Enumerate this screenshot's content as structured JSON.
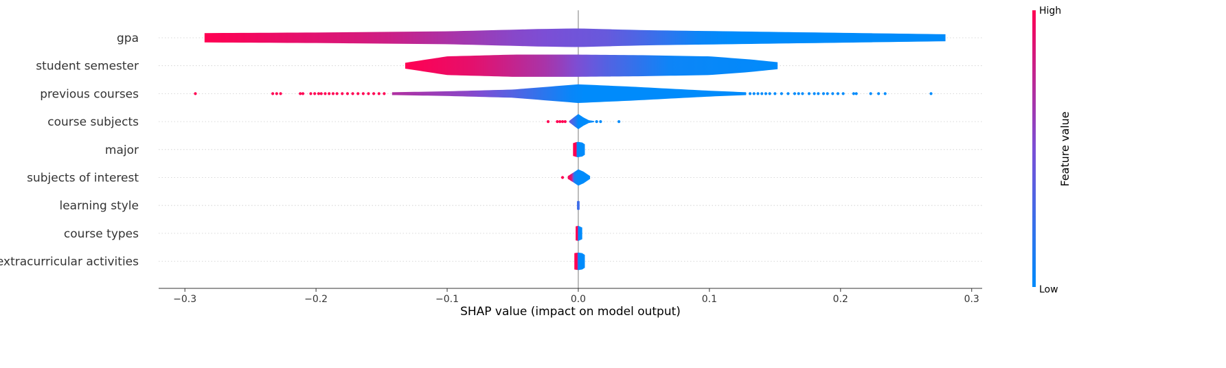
{
  "chart_data": {
    "type": "violin",
    "xlabel": "SHAP value (impact on model output)",
    "xlim": [
      -0.32,
      0.308
    ],
    "xticks": [
      -0.3,
      -0.2,
      -0.1,
      0.0,
      0.1,
      0.2,
      0.3
    ],
    "xtick_labels": [
      "−0.3",
      "−0.2",
      "−0.1",
      "0.0",
      "0.1",
      "0.2",
      "0.3"
    ],
    "colorbar": {
      "title": "Feature value",
      "high_label": "High",
      "low_label": "Low",
      "high_color": "#ff0052",
      "mid_color": "#7b4fd6",
      "low_color": "#008bfb"
    },
    "features": [
      {
        "name": "gpa",
        "min": -0.285,
        "max": 0.28,
        "width_profile": [
          [
            -0.285,
            0.4
          ],
          [
            -0.2,
            0.45
          ],
          [
            -0.1,
            0.55
          ],
          [
            -0.03,
            0.75
          ],
          [
            0.0,
            0.8
          ],
          [
            0.05,
            0.65
          ],
          [
            0.15,
            0.5
          ],
          [
            0.28,
            0.3
          ]
        ],
        "color_profile": [
          [
            -0.285,
            1.0
          ],
          [
            -0.15,
            0.82
          ],
          [
            -0.05,
            0.55
          ],
          [
            0.03,
            0.4
          ],
          [
            0.1,
            0.0
          ],
          [
            0.28,
            0.0
          ]
        ],
        "outliers": []
      },
      {
        "name": "student semester",
        "min": -0.132,
        "max": 0.152,
        "width_profile": [
          [
            -0.132,
            0.25
          ],
          [
            -0.1,
            0.8
          ],
          [
            -0.05,
            0.95
          ],
          [
            0.0,
            0.95
          ],
          [
            0.05,
            0.9
          ],
          [
            0.1,
            0.8
          ],
          [
            0.13,
            0.55
          ],
          [
            0.152,
            0.3
          ]
        ],
        "color_profile": [
          [
            -0.132,
            1.0
          ],
          [
            -0.08,
            0.9
          ],
          [
            -0.02,
            0.65
          ],
          [
            0.02,
            0.35
          ],
          [
            0.07,
            0.05
          ],
          [
            0.152,
            0.0
          ]
        ],
        "outliers": []
      },
      {
        "name": "previous courses",
        "min": -0.142,
        "max": 0.128,
        "width_profile": [
          [
            -0.142,
            0.12
          ],
          [
            -0.1,
            0.2
          ],
          [
            -0.05,
            0.35
          ],
          [
            0.0,
            0.8
          ],
          [
            0.04,
            0.6
          ],
          [
            0.1,
            0.25
          ],
          [
            0.128,
            0.12
          ]
        ],
        "color_profile": [
          [
            -0.142,
            0.7
          ],
          [
            -0.08,
            0.55
          ],
          [
            -0.03,
            0.2
          ],
          [
            0.0,
            0.0
          ],
          [
            0.128,
            0.0
          ]
        ],
        "outliers": [
          {
            "x": -0.292,
            "c": 1
          },
          {
            "x": -0.233,
            "c": 1
          },
          {
            "x": -0.23,
            "c": 1
          },
          {
            "x": -0.227,
            "c": 1
          },
          {
            "x": -0.212,
            "c": 1
          },
          {
            "x": -0.21,
            "c": 1
          },
          {
            "x": -0.204,
            "c": 1
          },
          {
            "x": -0.201,
            "c": 1
          },
          {
            "x": -0.198,
            "c": 1
          },
          {
            "x": -0.196,
            "c": 1
          },
          {
            "x": -0.193,
            "c": 1
          },
          {
            "x": -0.19,
            "c": 1
          },
          {
            "x": -0.187,
            "c": 1
          },
          {
            "x": -0.184,
            "c": 1
          },
          {
            "x": -0.18,
            "c": 1
          },
          {
            "x": -0.176,
            "c": 1
          },
          {
            "x": -0.172,
            "c": 1
          },
          {
            "x": -0.168,
            "c": 1
          },
          {
            "x": -0.164,
            "c": 1
          },
          {
            "x": -0.16,
            "c": 1
          },
          {
            "x": -0.156,
            "c": 1
          },
          {
            "x": -0.152,
            "c": 1
          },
          {
            "x": -0.148,
            "c": 1
          },
          {
            "x": 0.131,
            "c": 0
          },
          {
            "x": 0.134,
            "c": 0
          },
          {
            "x": 0.137,
            "c": 0
          },
          {
            "x": 0.14,
            "c": 0
          },
          {
            "x": 0.143,
            "c": 0
          },
          {
            "x": 0.146,
            "c": 0
          },
          {
            "x": 0.15,
            "c": 0
          },
          {
            "x": 0.155,
            "c": 0
          },
          {
            "x": 0.16,
            "c": 0
          },
          {
            "x": 0.165,
            "c": 0
          },
          {
            "x": 0.168,
            "c": 0
          },
          {
            "x": 0.171,
            "c": 0
          },
          {
            "x": 0.176,
            "c": 0
          },
          {
            "x": 0.18,
            "c": 0
          },
          {
            "x": 0.183,
            "c": 0
          },
          {
            "x": 0.187,
            "c": 0
          },
          {
            "x": 0.19,
            "c": 0
          },
          {
            "x": 0.194,
            "c": 0
          },
          {
            "x": 0.198,
            "c": 0
          },
          {
            "x": 0.202,
            "c": 0
          },
          {
            "x": 0.21,
            "c": 0
          },
          {
            "x": 0.212,
            "c": 0
          },
          {
            "x": 0.223,
            "c": 0
          },
          {
            "x": 0.229,
            "c": 0
          },
          {
            "x": 0.234,
            "c": 0
          },
          {
            "x": 0.269,
            "c": 0
          }
        ]
      },
      {
        "name": "course subjects",
        "min": -0.007,
        "max": 0.012,
        "width_profile": [
          [
            -0.007,
            0.05
          ],
          [
            -0.003,
            0.4
          ],
          [
            0.0,
            0.65
          ],
          [
            0.004,
            0.35
          ],
          [
            0.008,
            0.12
          ],
          [
            0.012,
            0.05
          ]
        ],
        "color_profile": [
          [
            -0.007,
            0.45
          ],
          [
            -0.002,
            0.15
          ],
          [
            0.0,
            0.0
          ],
          [
            0.012,
            0.0
          ]
        ],
        "outliers": [
          {
            "x": -0.023,
            "c": 1
          },
          {
            "x": -0.016,
            "c": 1
          },
          {
            "x": -0.014,
            "c": 1
          },
          {
            "x": -0.012,
            "c": 1
          },
          {
            "x": -0.01,
            "c": 1
          },
          {
            "x": 0.014,
            "c": 0
          },
          {
            "x": 0.017,
            "c": 0
          },
          {
            "x": 0.031,
            "c": 0
          }
        ]
      },
      {
        "name": "major",
        "min": -0.004,
        "max": 0.005,
        "width_profile": [
          [
            -0.004,
            0.55
          ],
          [
            -0.001,
            0.65
          ],
          [
            0.0,
            0.65
          ],
          [
            0.003,
            0.6
          ],
          [
            0.005,
            0.45
          ]
        ],
        "color_profile": [
          [
            -0.004,
            1.0
          ],
          [
            -0.0015,
            1.0
          ],
          [
            -0.001,
            0.0
          ],
          [
            0.005,
            0.0
          ]
        ],
        "outliers": []
      },
      {
        "name": "subjects of interest",
        "min": -0.008,
        "max": 0.009,
        "width_profile": [
          [
            -0.008,
            0.12
          ],
          [
            -0.004,
            0.4
          ],
          [
            0.0,
            0.7
          ],
          [
            0.004,
            0.5
          ],
          [
            0.009,
            0.12
          ]
        ],
        "color_profile": [
          [
            -0.008,
            1.0
          ],
          [
            -0.005,
            0.85
          ],
          [
            -0.003,
            0.1
          ],
          [
            0.0,
            0.0
          ],
          [
            0.009,
            0.0
          ]
        ],
        "outliers": [
          {
            "x": -0.012,
            "c": 1
          }
        ]
      },
      {
        "name": "learning style",
        "min": -0.001,
        "max": 0.001,
        "width_profile": [
          [
            -0.001,
            0.35
          ],
          [
            0.0,
            0.4
          ],
          [
            0.001,
            0.35
          ]
        ],
        "color_profile": [
          [
            -0.001,
            0.25
          ],
          [
            0.001,
            0.25
          ]
        ],
        "outliers": []
      },
      {
        "name": "course types",
        "min": -0.002,
        "max": 0.003,
        "width_profile": [
          [
            -0.002,
            0.6
          ],
          [
            0.0,
            0.65
          ],
          [
            0.003,
            0.5
          ]
        ],
        "color_profile": [
          [
            -0.002,
            1.0
          ],
          [
            -0.0005,
            1.0
          ],
          [
            0.0,
            0.0
          ],
          [
            0.003,
            0.0
          ]
        ],
        "outliers": []
      },
      {
        "name": "extracurricular activities",
        "min": -0.003,
        "max": 0.005,
        "width_profile": [
          [
            -0.003,
            0.7
          ],
          [
            0.0,
            0.75
          ],
          [
            0.003,
            0.7
          ],
          [
            0.005,
            0.55
          ]
        ],
        "color_profile": [
          [
            -0.003,
            1.0
          ],
          [
            -0.0008,
            1.0
          ],
          [
            0.0,
            0.0
          ],
          [
            0.005,
            0.0
          ]
        ],
        "outliers": []
      }
    ]
  }
}
